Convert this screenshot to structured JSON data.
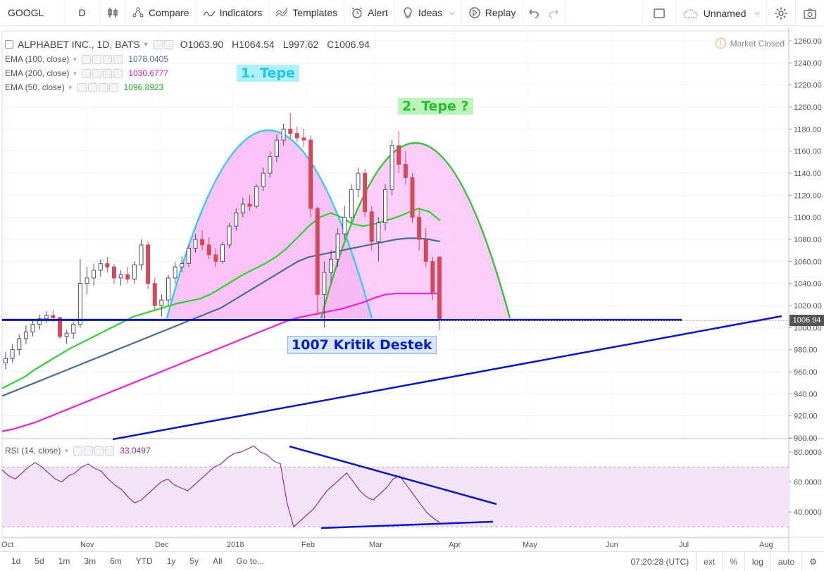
{
  "toolbar": {
    "symbol": "GOOGL",
    "interval": "D",
    "compare": "Compare",
    "indicators": "Indicators",
    "templates": "Templates",
    "alert": "Alert",
    "ideas": "Ideas",
    "replay": "Replay",
    "layout_name": "Unnamed"
  },
  "legend": {
    "title": "ALPHABET INC., 1D, BATS",
    "open": "O1063.90",
    "high": "H1064.54",
    "low": "L997.62",
    "close": "C1006.94",
    "ema100_label": "EMA (100, close)",
    "ema100_value": "1078.0405",
    "ema200_label": "EMA (200, close)",
    "ema200_value": "1030.6777",
    "ema50_label": "EMA (50, close)",
    "ema50_value": "1096.8923",
    "rsi_label": "RSI (14, close)",
    "rsi_value": "33.0497"
  },
  "market_status": "Market Closed",
  "last_price": "1006.94",
  "annotations": {
    "tepe1": "1. Tepe",
    "tepe2": "2. Tepe ?",
    "destek": "1007 Kritik Destek"
  },
  "colors": {
    "ema50": "#2fd02f",
    "ema100": "#4a6e8e",
    "ema200": "#ee22d0",
    "rsi": "#8e2f9a",
    "up": "#4c4c70",
    "down": "#d24a5a",
    "trend": "#0a14c8",
    "dome_fill": "#f9b8f5"
  },
  "chart_data": {
    "type": "candlestick",
    "price_axis": [
      1260,
      1240,
      1220,
      1200,
      1180,
      1160,
      1140,
      1120,
      1100,
      1080,
      1060,
      1040,
      1020,
      1000,
      980,
      960,
      940,
      920,
      900
    ],
    "price_axis_labels": [
      "1260.00",
      "1240.00",
      "1220.00",
      "1200.00",
      "1180.00",
      "1160.00",
      "1140.00",
      "1120.00",
      "1100.00",
      "1080.00",
      "1060.00",
      "1040.00",
      "1020.00",
      "1000.00",
      "980.00",
      "960.00",
      "940.00",
      "920.00",
      "900.00"
    ],
    "rsi_axis_labels": [
      "80.0000",
      "60.0000",
      "40.0000"
    ],
    "rsi_axis_values": [
      80,
      60,
      40
    ],
    "rsi_band": [
      70,
      30
    ],
    "time_labels": [
      "Oct",
      "Nov",
      "Dec",
      "2018",
      "Feb",
      "Mar",
      "Apr",
      "May",
      "Jun",
      "Jul",
      "Aug"
    ],
    "support_level": 1007,
    "candles": [
      [
        968,
        978,
        962,
        972
      ],
      [
        972,
        985,
        968,
        980
      ],
      [
        980,
        994,
        975,
        990
      ],
      [
        990,
        1002,
        985,
        996
      ],
      [
        996,
        1008,
        992,
        1003
      ],
      [
        1003,
        1012,
        998,
        1008
      ],
      [
        1008,
        1015,
        1004,
        1011
      ],
      [
        1011,
        1016,
        1005,
        1009
      ],
      [
        1009,
        1010,
        990,
        992
      ],
      [
        992,
        998,
        985,
        995
      ],
      [
        995,
        1005,
        990,
        1003
      ],
      [
        1003,
        1062,
        1000,
        1040
      ],
      [
        1040,
        1055,
        1030,
        1045
      ],
      [
        1045,
        1058,
        1038,
        1052
      ],
      [
        1052,
        1062,
        1046,
        1058
      ],
      [
        1058,
        1064,
        1050,
        1055
      ],
      [
        1055,
        1058,
        1040,
        1045
      ],
      [
        1045,
        1052,
        1038,
        1048
      ],
      [
        1048,
        1055,
        1040,
        1044
      ],
      [
        1044,
        1060,
        1040,
        1057
      ],
      [
        1057,
        1080,
        1052,
        1075
      ],
      [
        1075,
        1078,
        1035,
        1040
      ],
      [
        1040,
        1045,
        1015,
        1020
      ],
      [
        1020,
        1030,
        1010,
        1025
      ],
      [
        1025,
        1048,
        1020,
        1045
      ],
      [
        1045,
        1060,
        1040,
        1055
      ],
      [
        1055,
        1065,
        1050,
        1058
      ],
      [
        1058,
        1075,
        1055,
        1072
      ],
      [
        1072,
        1085,
        1068,
        1080
      ],
      [
        1080,
        1088,
        1070,
        1075
      ],
      [
        1075,
        1082,
        1062,
        1066
      ],
      [
        1066,
        1072,
        1055,
        1060
      ],
      [
        1060,
        1078,
        1058,
        1075
      ],
      [
        1075,
        1095,
        1072,
        1092
      ],
      [
        1092,
        1108,
        1088,
        1104
      ],
      [
        1104,
        1118,
        1100,
        1112
      ],
      [
        1112,
        1120,
        1106,
        1110
      ],
      [
        1110,
        1130,
        1108,
        1128
      ],
      [
        1128,
        1145,
        1124,
        1140
      ],
      [
        1140,
        1160,
        1136,
        1155
      ],
      [
        1155,
        1175,
        1150,
        1170
      ],
      [
        1170,
        1185,
        1165,
        1180
      ],
      [
        1180,
        1195,
        1172,
        1176
      ],
      [
        1176,
        1182,
        1168,
        1172
      ],
      [
        1172,
        1180,
        1164,
        1170
      ],
      [
        1170,
        1174,
        1100,
        1108
      ],
      [
        1108,
        1110,
        1012,
        1030
      ],
      [
        1030,
        1060,
        1000,
        1050
      ],
      [
        1050,
        1070,
        1040,
        1062
      ],
      [
        1062,
        1090,
        1055,
        1085
      ],
      [
        1085,
        1110,
        1080,
        1100
      ],
      [
        1100,
        1130,
        1095,
        1125
      ],
      [
        1125,
        1145,
        1118,
        1140
      ],
      [
        1140,
        1144,
        1100,
        1105
      ],
      [
        1105,
        1110,
        1070,
        1078
      ],
      [
        1078,
        1100,
        1060,
        1095
      ],
      [
        1095,
        1130,
        1088,
        1125
      ],
      [
        1125,
        1170,
        1120,
        1165
      ],
      [
        1165,
        1178,
        1140,
        1148
      ],
      [
        1148,
        1160,
        1130,
        1136
      ],
      [
        1136,
        1140,
        1095,
        1100
      ],
      [
        1100,
        1108,
        1070,
        1080
      ],
      [
        1080,
        1090,
        1055,
        1060
      ],
      [
        1060,
        1064,
        1025,
        1032
      ],
      [
        1063.9,
        1064.54,
        997.62,
        1006.94
      ]
    ],
    "ema50": [
      945,
      950,
      955,
      962,
      968,
      974,
      980,
      985,
      990,
      995,
      1000,
      1005,
      1010,
      1013,
      1016,
      1019,
      1022,
      1024,
      1026,
      1030,
      1036,
      1042,
      1048,
      1053,
      1058,
      1064,
      1072,
      1082,
      1092,
      1100,
      1104,
      1100,
      1094,
      1092,
      1094,
      1097,
      1100,
      1104,
      1108,
      1105,
      1097
    ],
    "ema100": [
      938,
      942,
      946,
      950,
      954,
      958,
      962,
      966,
      970,
      974,
      978,
      982,
      986,
      990,
      994,
      998,
      1002,
      1006,
      1010,
      1014,
      1018,
      1024,
      1030,
      1036,
      1042,
      1048,
      1054,
      1060,
      1064,
      1066,
      1068,
      1070,
      1072,
      1074,
      1076,
      1078,
      1080,
      1081,
      1081,
      1080,
      1078
    ],
    "ema200": [
      906,
      908,
      911,
      914,
      918,
      922,
      926,
      930,
      934,
      938,
      942,
      946,
      950,
      954,
      958,
      962,
      966,
      970,
      974,
      978,
      982,
      986,
      990,
      994,
      998,
      1002,
      1006,
      1009,
      1011,
      1013,
      1015,
      1017,
      1020,
      1023,
      1027,
      1030,
      1031,
      1031,
      1031,
      1031,
      1031
    ],
    "rsi": [
      68,
      64,
      62,
      66,
      70,
      73,
      70,
      66,
      62,
      60,
      64,
      66,
      70,
      72,
      69,
      67,
      62,
      58,
      55,
      50,
      46,
      48,
      52,
      56,
      60,
      62,
      58,
      56,
      54,
      58,
      62,
      66,
      70,
      72,
      76,
      79,
      80,
      82,
      84,
      80,
      78,
      74,
      72,
      46,
      30,
      34,
      38,
      42,
      48,
      54,
      58,
      62,
      66,
      60,
      54,
      50,
      48,
      52,
      56,
      62,
      64,
      58,
      52,
      46,
      40,
      36,
      33
    ]
  }
}
